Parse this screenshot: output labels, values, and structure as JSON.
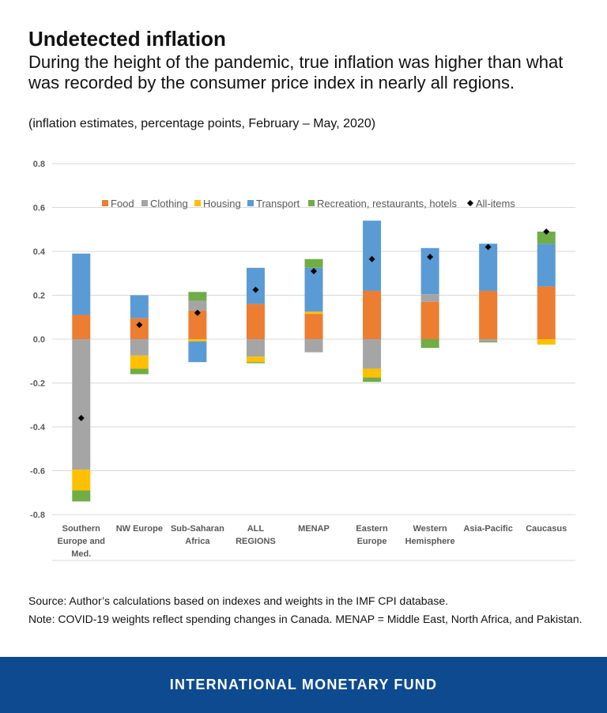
{
  "header": {
    "title": "Undetected inflation",
    "subtitle": "During the height of the pandemic, true inflation was higher than what was recorded by the consumer price index in nearly all regions.",
    "units": "(inflation estimates, percentage points, February – May, 2020)"
  },
  "footer": {
    "source": "Source: Author’s calculations based on indexes and weights in the IMF CPI database.",
    "note": "Note: COVID-19 weights reflect spending changes in Canada. MENAP = Middle East, North Africa, and Pakistan.",
    "brand": "INTERNATIONAL MONETARY FUND",
    "brand_color": "#0e4a8f"
  },
  "chart_data": {
    "type": "bar",
    "stacked": true,
    "categories": [
      [
        "Southern",
        "Europe and",
        "Med."
      ],
      [
        "NW Europe"
      ],
      [
        "Sub-Saharan",
        "Africa"
      ],
      [
        "ALL",
        "REGIONS"
      ],
      [
        "MENAP"
      ],
      [
        "Eastern",
        "Europe"
      ],
      [
        "Western",
        "Hemisphere"
      ],
      [
        "Asia-Pacific"
      ],
      [
        "Caucasus"
      ]
    ],
    "ylim": [
      -0.8,
      0.8
    ],
    "yticks": [
      "0.8",
      "0.6",
      "0.4",
      "0.2",
      "0.0",
      "-0.2",
      "-0.4",
      "-0.6",
      "-0.8"
    ],
    "ytick_values": [
      0.8,
      0.6,
      0.4,
      0.2,
      0.0,
      -0.2,
      -0.4,
      -0.6,
      -0.8
    ],
    "grid": true,
    "legend_position": "top",
    "series": [
      {
        "name": "Food",
        "color": "#ed7d31",
        "values": [
          0.11,
          0.095,
          0.13,
          0.16,
          0.115,
          0.22,
          0.17,
          0.22,
          0.24
        ]
      },
      {
        "name": "Clothing",
        "color": "#a5a5a5",
        "values": [
          -0.595,
          -0.075,
          0.045,
          -0.08,
          -0.06,
          -0.135,
          0.035,
          -0.01,
          0.0
        ]
      },
      {
        "name": "Housing",
        "color": "#ffc000",
        "values": [
          -0.095,
          -0.06,
          -0.01,
          -0.025,
          0.01,
          -0.04,
          0.0,
          0.0,
          -0.025
        ]
      },
      {
        "name": "Transport",
        "color": "#5b9bd5",
        "values": [
          0.28,
          0.105,
          -0.095,
          0.165,
          0.2,
          0.32,
          0.21,
          0.215,
          0.195
        ]
      },
      {
        "name": "Recreation, restaurants, hotels",
        "color": "#70ad47",
        "values": [
          -0.05,
          -0.025,
          0.04,
          -0.005,
          0.04,
          -0.02,
          -0.04,
          -0.005,
          0.055
        ]
      }
    ],
    "overlay": {
      "name": "All-items",
      "color": "#000000",
      "values": [
        -0.36,
        0.065,
        0.12,
        0.225,
        0.31,
        0.365,
        0.375,
        0.42,
        0.49
      ]
    }
  }
}
